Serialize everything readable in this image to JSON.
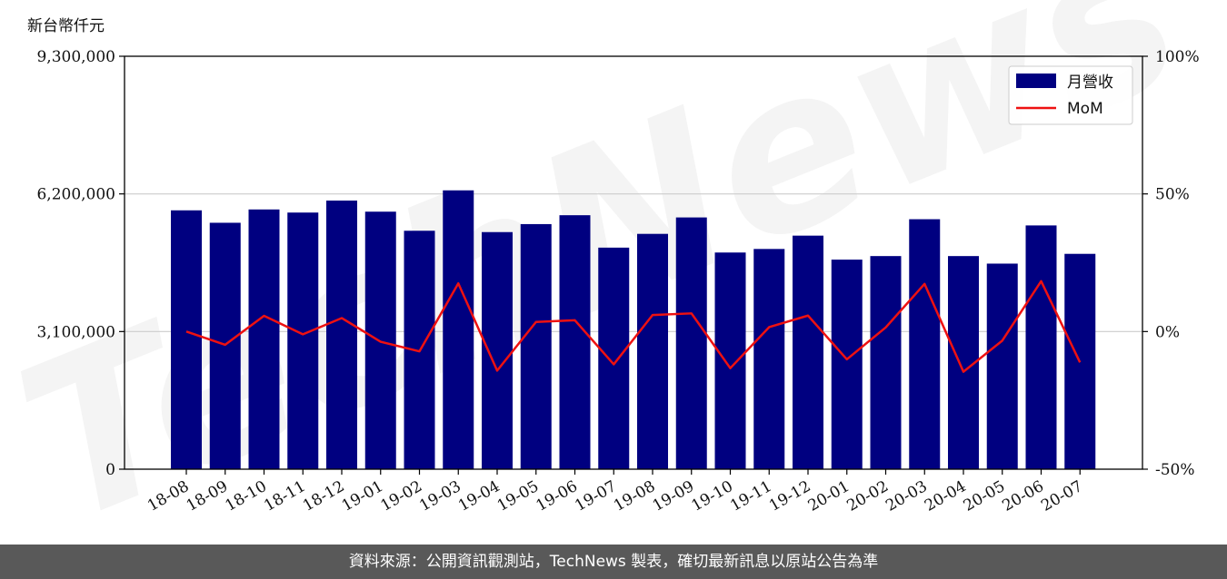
{
  "unit_label": "新台幣仟元",
  "footer": "資料來源：公開資訊觀測站，TechNews 製表，確切最新訊息以原站公告為準",
  "watermark": "TechNews",
  "colors": {
    "bar": "#000080",
    "line": "#ee1111",
    "grid": "#cccccc",
    "footer_bg": "#595959"
  },
  "chart_data": {
    "type": "bar",
    "categories": [
      "18-08",
      "18-09",
      "18-10",
      "18-11",
      "18-12",
      "19-01",
      "19-02",
      "19-03",
      "19-04",
      "19-05",
      "19-06",
      "19-07",
      "19-08",
      "19-09",
      "19-10",
      "19-11",
      "19-12",
      "20-01",
      "20-02",
      "20-03",
      "20-04",
      "20-05",
      "20-06",
      "20-07"
    ],
    "series": [
      {
        "name": "月營收",
        "type": "bar",
        "axis": "left",
        "values": [
          5830000,
          5550000,
          5850000,
          5780000,
          6050000,
          5800000,
          5370000,
          6280000,
          5340000,
          5520000,
          5720000,
          4990000,
          5300000,
          5670000,
          4880000,
          4960000,
          5260000,
          4720000,
          4800000,
          5630000,
          4800000,
          4630000,
          5490000,
          4850000
        ]
      },
      {
        "name": "MoM",
        "type": "line",
        "axis": "right",
        "values": [
          0.0,
          -4.8,
          5.7,
          -1.0,
          4.9,
          -3.7,
          -7.2,
          17.5,
          -14.2,
          3.5,
          4.1,
          -11.9,
          6.0,
          6.6,
          -13.3,
          1.6,
          5.8,
          -10.1,
          1.5,
          17.3,
          -14.6,
          -3.3,
          18.3,
          -11.2
        ]
      }
    ],
    "y_left": {
      "ylim": [
        0,
        9300000
      ],
      "ticks": [
        "0",
        "3,100,000",
        "6,200,000",
        "9,300,000"
      ],
      "tick_values": [
        0,
        3100000,
        6200000,
        9300000
      ]
    },
    "y_right": {
      "ylim": [
        -50,
        100
      ],
      "ticks": [
        "-50%",
        "0%",
        "50%",
        "100%"
      ],
      "tick_values": [
        -50,
        0,
        50,
        100
      ]
    },
    "grid": "horizontal",
    "legend": {
      "placement": "top-right",
      "entries": [
        "月營收",
        "MoM"
      ]
    }
  }
}
